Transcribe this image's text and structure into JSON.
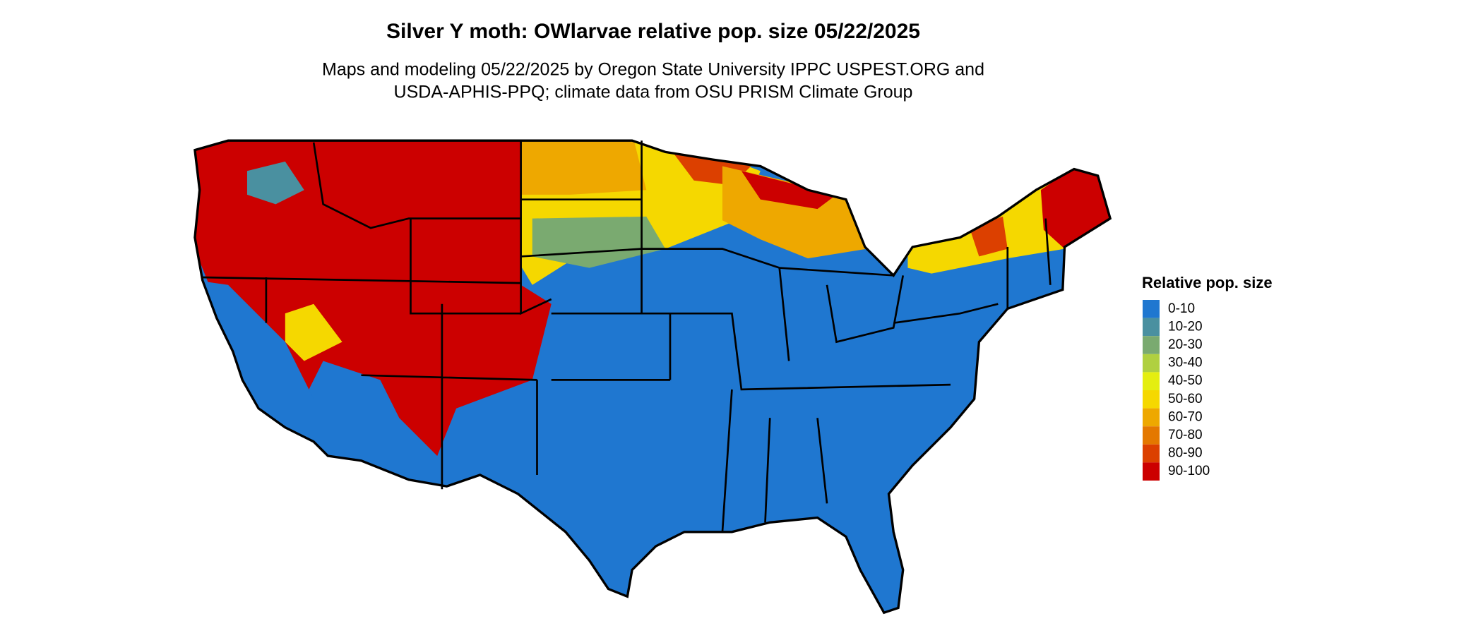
{
  "title": "Silver Y moth: OWlarvae relative pop. size 05/22/2025",
  "subtitle": [
    "Maps and modeling 05/22/2025 by Oregon State University IPPC USPEST.ORG and",
    "USDA-APHIS-PPQ; climate data from OSU PRISM Climate Group"
  ],
  "legend": {
    "title": "Relative pop. size",
    "items": [
      {
        "label": "0-10",
        "color": "#1f77d0"
      },
      {
        "label": "10-20",
        "color": "#4a90a0"
      },
      {
        "label": "20-30",
        "color": "#7aaa70"
      },
      {
        "label": "30-40",
        "color": "#b0d040"
      },
      {
        "label": "40-50",
        "color": "#e4ee10"
      },
      {
        "label": "50-60",
        "color": "#f5d800"
      },
      {
        "label": "60-70",
        "color": "#eea800"
      },
      {
        "label": "70-80",
        "color": "#e47800"
      },
      {
        "label": "80-90",
        "color": "#dc4000"
      },
      {
        "label": "90-100",
        "color": "#cc0000"
      }
    ]
  }
}
